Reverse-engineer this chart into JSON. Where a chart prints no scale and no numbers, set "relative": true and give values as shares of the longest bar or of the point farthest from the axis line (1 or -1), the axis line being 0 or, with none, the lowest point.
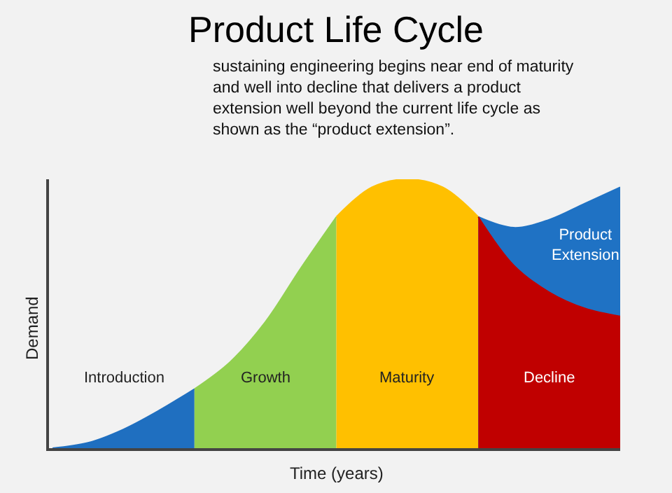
{
  "chart_data": {
    "type": "area",
    "title": "Product Life Cycle",
    "subtitle": "sustaining engineering begins near end of maturity and well into decline that delivers a product extension well beyond the current life cycle as shown as the “product extension”.",
    "xlabel": "Time (years)",
    "ylabel": "Demand",
    "relative": true,
    "grid": false,
    "legend": false,
    "categories": [
      null,
      null,
      null,
      null,
      null,
      null,
      null,
      null,
      null,
      null,
      null,
      null,
      null,
      null,
      null,
      null,
      null
    ],
    "series": [
      {
        "name": "Introduction",
        "color": "#1f6fc0",
        "values": [
          0,
          0.02,
          0.07,
          0.14,
          0.22,
          null,
          null,
          null,
          null,
          null,
          null,
          null,
          null,
          null,
          null,
          null,
          null
        ]
      },
      {
        "name": "Growth",
        "color": "#92d050",
        "values": [
          null,
          null,
          null,
          null,
          0.22,
          0.32,
          0.47,
          0.67,
          0.86,
          null,
          null,
          null,
          null,
          null,
          null,
          null,
          null
        ]
      },
      {
        "name": "Maturity",
        "color": "#ffc000",
        "values": [
          null,
          null,
          null,
          null,
          null,
          null,
          null,
          null,
          0.86,
          0.97,
          1.0,
          0.97,
          0.86,
          null,
          null,
          null,
          null
        ]
      },
      {
        "name": "Product Extension",
        "color": "#1f72c4",
        "values": [
          null,
          null,
          null,
          null,
          null,
          null,
          null,
          null,
          null,
          null,
          null,
          null,
          0.86,
          0.82,
          0.85,
          0.91,
          0.97
        ]
      },
      {
        "name": "Decline",
        "color": "#c00000",
        "values": [
          null,
          null,
          null,
          null,
          null,
          null,
          null,
          null,
          null,
          null,
          null,
          null,
          0.86,
          0.68,
          0.58,
          0.52,
          0.49
        ]
      }
    ]
  }
}
